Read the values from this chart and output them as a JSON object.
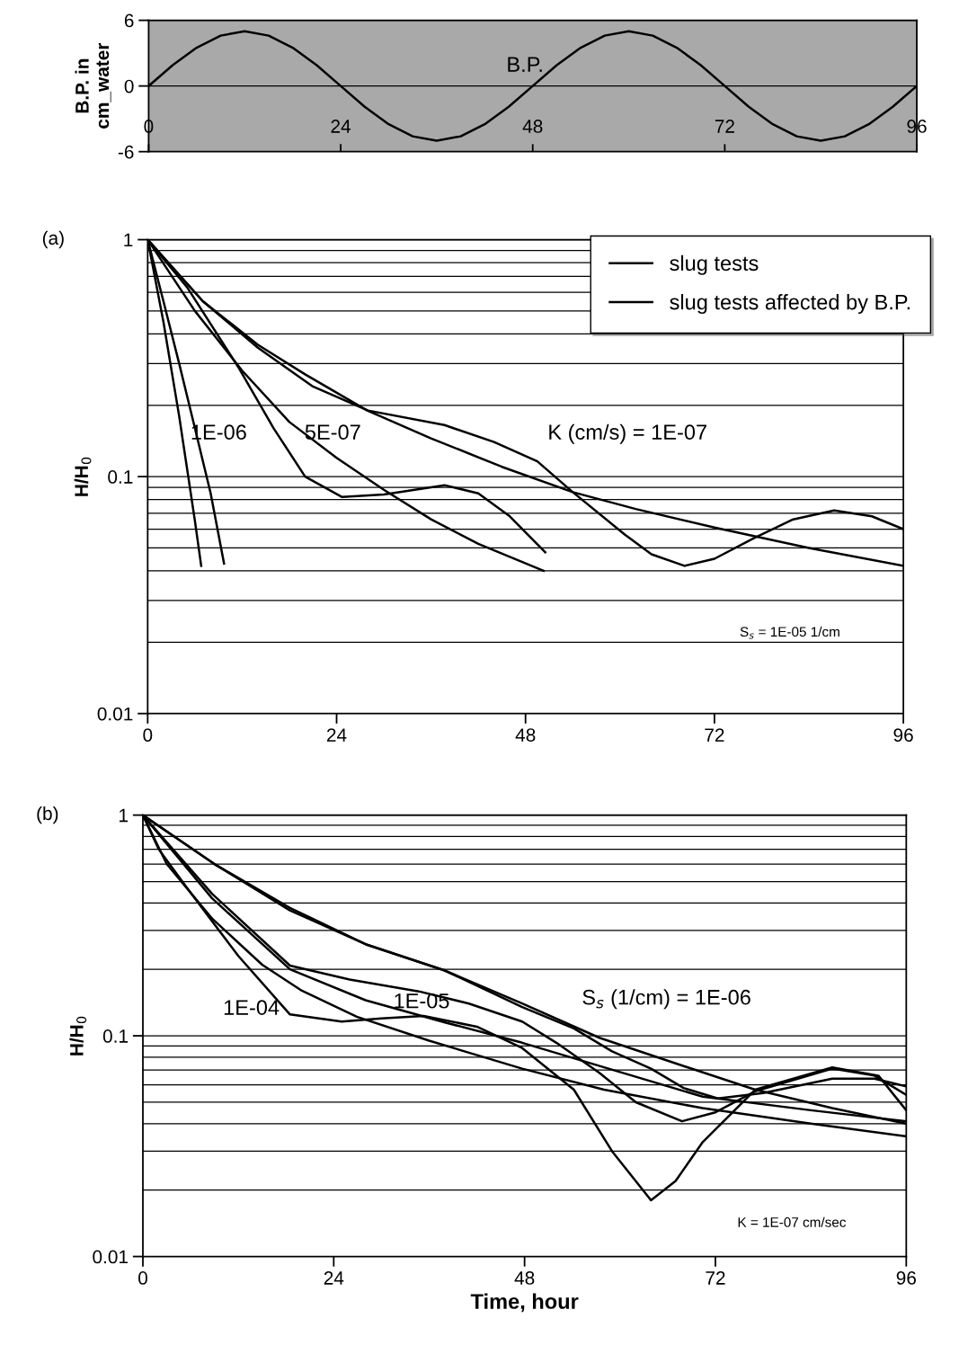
{
  "chart_data": [
    {
      "type": "line",
      "ylabel": "B.P. in\ncm_water",
      "xlim": [
        0,
        96
      ],
      "xticks": [
        0,
        24,
        48,
        72,
        96
      ],
      "ylim": [
        -6,
        6
      ],
      "yticks": [
        -6,
        0,
        6
      ],
      "grid": "y",
      "bands": [
        {
          "axis": "y",
          "from": -6,
          "to": 6,
          "color": "#a9a9a9"
        }
      ],
      "annotations": [
        "B.P."
      ],
      "series": [
        {
          "color": "#000000",
          "x": [
            0,
            3,
            6,
            9,
            12,
            15,
            18,
            21,
            24,
            27,
            30,
            33,
            36,
            39,
            42,
            45,
            48,
            51,
            54,
            57,
            60,
            63,
            66,
            69,
            72,
            75,
            78,
            81,
            84,
            87,
            90,
            93,
            96
          ],
          "values": [
            0,
            1.9,
            3.5,
            4.6,
            5,
            4.6,
            3.5,
            1.9,
            0,
            -1.9,
            -3.5,
            -4.6,
            -5,
            -4.6,
            -3.5,
            -1.9,
            0,
            1.9,
            3.5,
            4.6,
            5,
            4.6,
            3.5,
            1.9,
            0,
            -1.9,
            -3.5,
            -4.6,
            -5,
            -4.6,
            -3.5,
            -1.9,
            0
          ]
        }
      ]
    },
    {
      "type": "line",
      "title": "(a)",
      "ylabel": "H/H$_{0}$",
      "log": "y",
      "xlim": [
        0,
        96
      ],
      "xticks": [
        0,
        24,
        48,
        72,
        96
      ],
      "ylim": [
        0.01,
        1
      ],
      "yticks": [
        0.01,
        0.1,
        1
      ],
      "grid": "y",
      "legend": "top right",
      "annotations": [
        "1E-06",
        "5E-07",
        "K (cm/s) = 1E-07",
        "S$_{s}$ = 1E-05 1/cm"
      ],
      "series": [
        {
          "name": "slug tests",
          "color": "#000000",
          "x": [
            0,
            2,
            4,
            6,
            8,
            9.7
          ],
          "values": [
            1,
            0.55,
            0.3,
            0.16,
            0.085,
            0.043
          ]
        },
        {
          "color": "#000000",
          "x": [
            0,
            6,
            12,
            18,
            24,
            30,
            36,
            42,
            50.3
          ],
          "values": [
            1,
            0.5,
            0.28,
            0.17,
            0.12,
            0.088,
            0.066,
            0.052,
            0.04
          ]
        },
        {
          "color": "#000000",
          "x": [
            0,
            7,
            14,
            20,
            27.9,
            36,
            45,
            54,
            62,
            72,
            84,
            96
          ],
          "values": [
            1,
            0.55,
            0.36,
            0.27,
            0.19,
            0.145,
            0.11,
            0.086,
            0.073,
            0.061,
            0.05,
            0.042
          ]
        },
        {
          "name": "slug tests affected by B.P.",
          "color": "#000000",
          "x": [
            0,
            2,
            4,
            6,
            6.8
          ],
          "values": [
            1,
            0.45,
            0.18,
            0.065,
            0.042
          ]
        },
        {
          "color": "#000000",
          "x": [
            0,
            5,
            11.5,
            16,
            20,
            24.7,
            30,
            37.7,
            42,
            46,
            50.5
          ],
          "values": [
            1,
            0.63,
            0.29,
            0.16,
            0.1,
            0.082,
            0.084,
            0.092,
            0.085,
            0.068,
            0.048
          ]
        },
        {
          "color": "#000000",
          "x": [
            0,
            7,
            14,
            21,
            28,
            37.7,
            44,
            49.5,
            54,
            60.6,
            64,
            68.2,
            72,
            77,
            82,
            87.2,
            92,
            96
          ],
          "values": [
            1,
            0.55,
            0.35,
            0.24,
            0.19,
            0.165,
            0.14,
            0.116,
            0.086,
            0.057,
            0.047,
            0.042,
            0.045,
            0.055,
            0.066,
            0.072,
            0.068,
            0.06
          ]
        }
      ]
    },
    {
      "type": "line",
      "title": "(b)",
      "ylabel": "H/H$_{0}$",
      "xlabel": "Time, hour",
      "log": "y",
      "xlim": [
        0,
        96
      ],
      "xticks": [
        0,
        24,
        48,
        72,
        96
      ],
      "ylim": [
        0.01,
        1
      ],
      "yticks": [
        0.01,
        0.1,
        1
      ],
      "grid": "y",
      "annotations": [
        "1E-04",
        "1E-05",
        "S$_{s}$ (1/cm) = 1E-06",
        "K = 1E-07 cm/sec"
      ],
      "series": [
        {
          "color": "#000000",
          "x": [
            0,
            3,
            8.7,
            15,
            20,
            26.9,
            36,
            47.7,
            58,
            70.4,
            84,
            96
          ],
          "values": [
            1,
            0.6,
            0.34,
            0.21,
            0.16,
            0.122,
            0.095,
            0.071,
            0.057,
            0.047,
            0.04,
            0.035
          ]
        },
        {
          "color": "#000000",
          "x": [
            0,
            8.7,
            18.5,
            28,
            38,
            47.7,
            58,
            70.4,
            84,
            96
          ],
          "values": [
            1,
            0.42,
            0.2,
            0.145,
            0.115,
            0.093,
            0.072,
            0.053,
            0.046,
            0.041
          ]
        },
        {
          "color": "#000000",
          "x": [
            0,
            9,
            18.5,
            28,
            37.9,
            47.7,
            57.4,
            67,
            77,
            86.7,
            96
          ],
          "values": [
            1,
            0.6,
            0.38,
            0.26,
            0.198,
            0.14,
            0.098,
            0.075,
            0.057,
            0.047,
            0.04
          ]
        },
        {
          "color": "#000000",
          "x": [
            0,
            2,
            5.5,
            12,
            18.5,
            25,
            30,
            35.3,
            42,
            47.7,
            54.2,
            59,
            63.9,
            67,
            70.4,
            77,
            86.7,
            92.5,
            96
          ],
          "values": [
            1,
            0.7,
            0.47,
            0.23,
            0.125,
            0.116,
            0.12,
            0.123,
            0.11,
            0.088,
            0.057,
            0.03,
            0.018,
            0.022,
            0.033,
            0.057,
            0.072,
            0.066,
            0.046
          ]
        },
        {
          "color": "#000000",
          "x": [
            0,
            8.7,
            18.5,
            26,
            34.7,
            41,
            47.7,
            52,
            57.4,
            62,
            67.8,
            72,
            77,
            86.7,
            92,
            96
          ],
          "values": [
            1,
            0.44,
            0.208,
            0.18,
            0.159,
            0.14,
            0.116,
            0.093,
            0.068,
            0.05,
            0.041,
            0.045,
            0.056,
            0.071,
            0.066,
            0.054
          ]
        },
        {
          "color": "#000000",
          "x": [
            0,
            9,
            18.5,
            28,
            37.9,
            47.7,
            54.2,
            59,
            63.9,
            68,
            72.3,
            78,
            86.7,
            92,
            96
          ],
          "values": [
            1,
            0.6,
            0.37,
            0.26,
            0.198,
            0.135,
            0.108,
            0.085,
            0.071,
            0.058,
            0.052,
            0.055,
            0.064,
            0.064,
            0.059
          ]
        }
      ]
    }
  ]
}
